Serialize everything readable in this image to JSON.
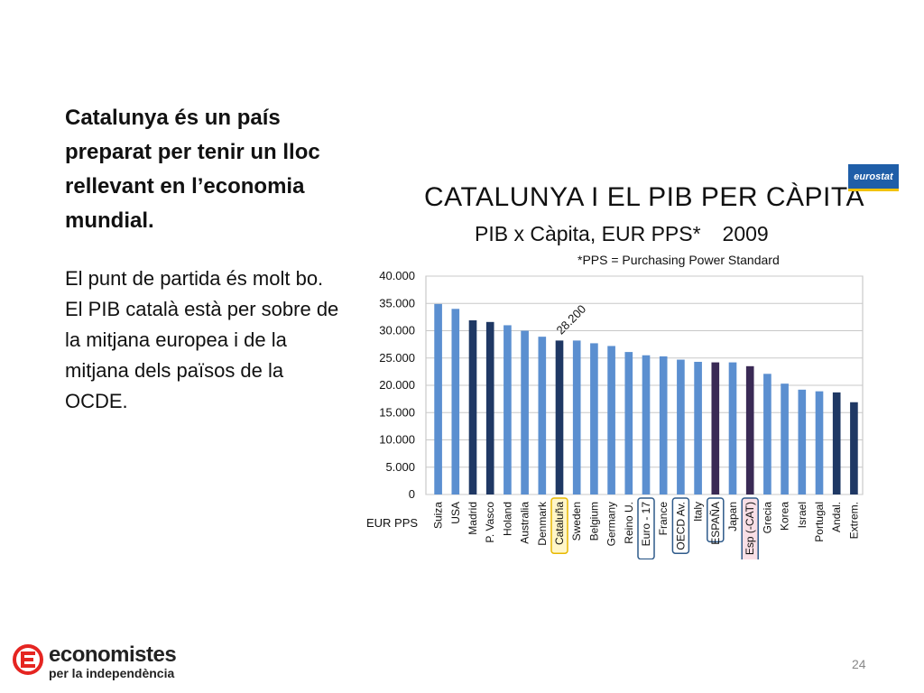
{
  "slide": {
    "heading": "Catalunya és un país preparat per tenir un lloc rellevant en l’economia mundial.",
    "body": "El punt de partida és molt bo. El PIB català està per sobre de la mitjana europea i de la mitjana dels països de la OCDE.",
    "page_number": "24"
  },
  "logo": {
    "line1": "economistes",
    "line2": "per la independència",
    "color": "#e52521"
  },
  "source_badge": "eurostat",
  "chart_data": {
    "type": "bar",
    "title": "CATALUNYA I EL PIB PER CÀPITA",
    "subtitle": "PIB x Càpita, EUR PPS*",
    "year": "2009",
    "note": "*PPS = Purchasing Power Standard",
    "xlabel": "EUR PPS",
    "ylim": [
      0,
      40000
    ],
    "yticks": [
      "0",
      "5.000",
      "10.000",
      "15.000",
      "20.000",
      "25.000",
      "30.000",
      "35.000",
      "40.000"
    ],
    "grid": true,
    "categories": [
      "Suiza",
      "USA",
      "Madrid",
      "P. Vasco",
      "Holand",
      "Australia",
      "Denmark",
      "Cataluña",
      "Sweden",
      "Belgium",
      "Germany",
      "Reino U.",
      "Euro - 17",
      "France",
      "OECD Av.",
      "Italy",
      "ESPAÑA",
      "Japan",
      "Esp (-CAT)",
      "Grecia",
      "Korea",
      "Israel",
      "Portugal",
      "Andal.",
      "Extrem."
    ],
    "values": [
      34900,
      34000,
      31900,
      31600,
      31000,
      30000,
      28900,
      28200,
      28200,
      27700,
      27200,
      26100,
      25500,
      25300,
      24700,
      24300,
      24200,
      24200,
      23500,
      22100,
      20300,
      19200,
      18900,
      18700,
      16900
    ],
    "bar_colors": [
      "#5b8fd0",
      "#5b8fd0",
      "#1f3864",
      "#1f3864",
      "#5b8fd0",
      "#5b8fd0",
      "#5b8fd0",
      "#1f3864",
      "#5b8fd0",
      "#5b8fd0",
      "#5b8fd0",
      "#5b8fd0",
      "#5b8fd0",
      "#5b8fd0",
      "#5b8fd0",
      "#5b8fd0",
      "#3a2a55",
      "#5b8fd0",
      "#3a2a55",
      "#5b8fd0",
      "#5b8fd0",
      "#5b8fd0",
      "#5b8fd0",
      "#1f3864",
      "#1f3864"
    ],
    "label_boxes": {
      "Cataluña": {
        "border": "#e8b800",
        "fill": "#fff6c8"
      },
      "Euro - 17": {
        "border": "#2e5a8a",
        "fill": "none"
      },
      "OECD Av.": {
        "border": "#2e5a8a",
        "fill": "none"
      },
      "ESPAÑA": {
        "border": "#2e5a8a",
        "fill": "none"
      },
      "Esp (-CAT)": {
        "border": "#2e5a8a",
        "fill": "#f9dfe6"
      }
    },
    "annotation": {
      "category": "Cataluña",
      "text": "28.200"
    }
  }
}
